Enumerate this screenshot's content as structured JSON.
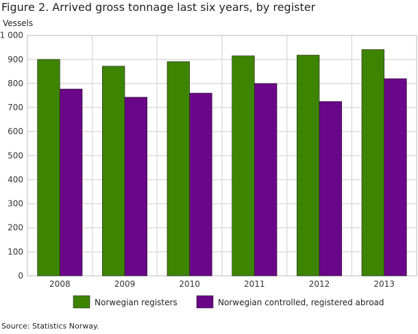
{
  "title": "Figure 2. Arrived gross tonnage last six years, by register",
  "source": "Source: Statistics Norway.",
  "chart_data": {
    "type": "bar",
    "title": "Figure 2. Arrived gross tonnage last six years, by register",
    "ylabel": "Vessels",
    "ylim": [
      0,
      1000
    ],
    "yticks": [
      0,
      100,
      200,
      300,
      400,
      500,
      600,
      700,
      800,
      900,
      1000
    ],
    "ytick_labels": [
      "0",
      "100",
      "200",
      "300",
      "400",
      "500",
      "600",
      "700",
      "800",
      "900",
      "1 000"
    ],
    "categories": [
      "2008",
      "2009",
      "2010",
      "2011",
      "2012",
      "2013"
    ],
    "grid": true,
    "legend_placement": "bottom",
    "series": [
      {
        "name": "Norwegian registers",
        "color": "#3d8400",
        "values": [
          900,
          872,
          891,
          915,
          918,
          941
        ]
      },
      {
        "name": "Norwegian controlled, registered abroad",
        "color": "#6a0688",
        "values": [
          777,
          743,
          760,
          800,
          725,
          820
        ]
      }
    ]
  }
}
